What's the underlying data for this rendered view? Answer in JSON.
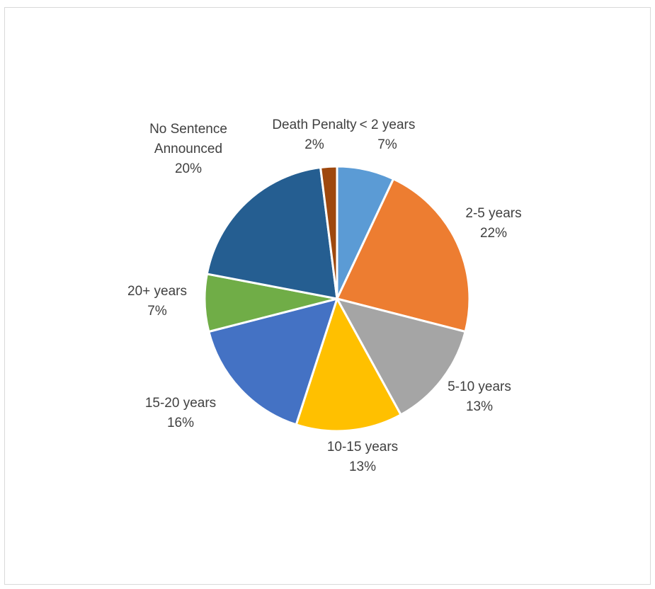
{
  "chart_data": {
    "type": "pie",
    "title": "",
    "categories": [
      "< 2 years",
      "2-5 years",
      "5-10 years",
      "10-15 years",
      "15-20 years",
      "20+ years",
      "No Sentence Announced",
      "Death Penalty"
    ],
    "values": [
      7,
      22,
      13,
      13,
      16,
      7,
      20,
      2
    ],
    "percent_labels": [
      "7%",
      "22%",
      "13%",
      "13%",
      "16%",
      "7%",
      "20%",
      "2%"
    ],
    "label_lines": [
      [
        "< 2 years",
        "7%"
      ],
      [
        "2-5 years",
        "22%"
      ],
      [
        "5-10 years",
        "13%"
      ],
      [
        "10-15 years",
        "13%"
      ],
      [
        "15-20 years",
        "16%"
      ],
      [
        "20+ years",
        "7%"
      ],
      [
        "No Sentence",
        "Announced",
        "20%"
      ],
      [
        "Death Penalty",
        "2%"
      ]
    ],
    "colors": [
      "#5b9bd5",
      "#ed7d31",
      "#a5a5a5",
      "#ffc000",
      "#4472c4",
      "#70ad47",
      "#255e91",
      "#9e480e"
    ],
    "start_angle_deg": 0,
    "direction": "clockwise",
    "legend": "none",
    "data_labels": "category-and-percent"
  }
}
